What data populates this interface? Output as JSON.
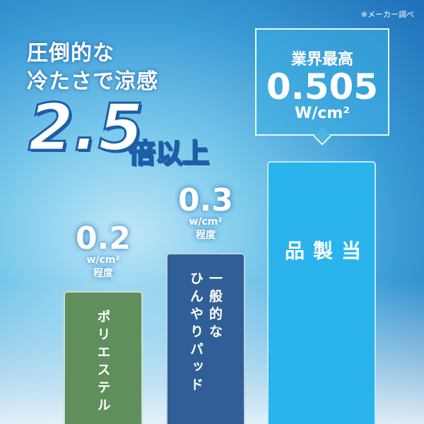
{
  "note": "※メーカー調べ",
  "headline": {
    "line1": "圧倒的な",
    "line2": "冷たさで涼感",
    "multiplier": "2.5",
    "multiplier_suffix": "倍以上"
  },
  "callout": {
    "label": "業界最高",
    "value": "0.505",
    "unit": "W/cm²"
  },
  "chart_data": {
    "type": "bar",
    "categories": [
      "ポリエステル",
      "一般的な\nひんやりパッド",
      "当\n製\n品"
    ],
    "values": [
      0.2,
      0.3,
      0.505
    ],
    "value_labels": [
      {
        "n": "0.2",
        "u": "w/cm²",
        "d": "程度"
      },
      {
        "n": "0.3",
        "u": "w/cm²",
        "d": "程度"
      }
    ],
    "colors": [
      "#5e8f5c",
      "#2f5f96",
      "#2bb4ec"
    ],
    "ylim": [
      0,
      0.6
    ]
  }
}
